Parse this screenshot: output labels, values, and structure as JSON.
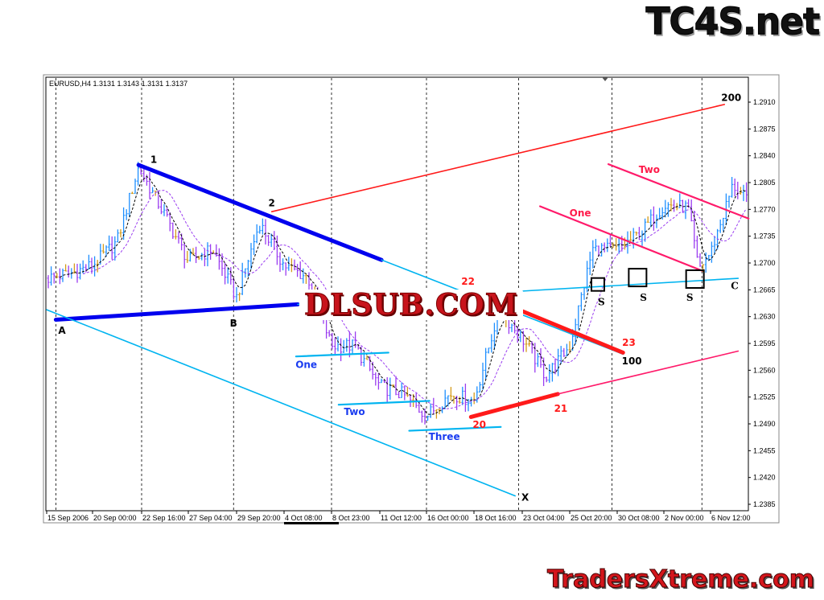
{
  "header": {
    "symbol_info": "EURUSD,H4  1.3131 1.3143 1.3131 1.3137"
  },
  "watermarks": {
    "top_right": "TC4S.net",
    "center": "DLSUB.COM",
    "bottom_right": "TradersXtreme.com"
  },
  "chart_data": {
    "type": "candlestick-bars",
    "symbol": "EURUSD",
    "timeframe": "H4",
    "ylim": [
      1.2385,
      1.293
    ],
    "y_ticks": [
      "1.2910",
      "1.2875",
      "1.2840",
      "1.2805",
      "1.2770",
      "1.2735",
      "1.2700",
      "1.2665",
      "1.2630",
      "1.2595",
      "1.2560",
      "1.2525",
      "1.2490",
      "1.2455",
      "1.2420",
      "1.2385"
    ],
    "x_ticks": [
      {
        "label": "15 Sep 2006",
        "t": "2006-09-15 00:00"
      },
      {
        "label": "20 Sep 00:00",
        "t": "2006-09-20 00:00"
      },
      {
        "label": "22 Sep 16:00",
        "t": "2006-09-22 16:00"
      },
      {
        "label": "27 Sep 04:00",
        "t": "2006-09-27 04:00"
      },
      {
        "label": "29 Sep 20:00",
        "t": "2006-09-29 20:00"
      },
      {
        "label": "4 Oct 08:00",
        "t": "2006-10-04 08:00"
      },
      {
        "label": "8 Oct 23:00",
        "t": "2006-10-08 23:00"
      },
      {
        "label": "11 Oct 12:00",
        "t": "2006-10-11 12:00"
      },
      {
        "label": "16 Oct 00:00",
        "t": "2006-10-16 00:00"
      },
      {
        "label": "18 Oct 16:00",
        "t": "2006-10-18 16:00"
      },
      {
        "label": "23 Oct 04:00",
        "t": "2006-10-23 04:00"
      },
      {
        "label": "25 Oct 20:00",
        "t": "2006-10-25 20:00"
      },
      {
        "label": "30 Oct 08:00",
        "t": "2006-10-30 08:00"
      },
      {
        "label": "2 Nov 00:00",
        "t": "2006-11-02 00:00"
      },
      {
        "label": "6 Nov 12:00",
        "t": "2006-11-06 12:00"
      }
    ],
    "period_separators": [
      "2006-09-16 00:00",
      "2006-09-22 16:00",
      "2006-09-29 16:00",
      "2006-10-08 23:00",
      "2006-10-16 00:00",
      "2006-10-22 20:00",
      "2006-10-29 20:00",
      "2006-11-05 16:00"
    ],
    "grid": false,
    "colors": {
      "bar_up": "#1e8fff",
      "bar_down": "#9a3cf0",
      "bar_doji": "#d49a1a",
      "ma_fast": "#000000",
      "ma_slow": "#9a3cf0",
      "blue_trend": "#0000ee",
      "cyan_line": "#00b4f0",
      "red_line": "#ff1a1a",
      "pink_line": "#ff1a6a"
    },
    "moving_averages": [
      {
        "period": 5,
        "color": "#000000",
        "style": "dashed"
      },
      {
        "period": 13,
        "color": "#9a3cf0",
        "style": "dashed"
      }
    ],
    "price_path": [
      [
        "2006-09-15 00:00",
        1.268
      ],
      [
        "2006-09-17 12:00",
        1.2686
      ],
      [
        "2006-09-20 00:00",
        1.2697
      ],
      [
        "2006-09-21 08:00",
        1.2728
      ],
      [
        "2006-09-22 12:00",
        1.2825
      ],
      [
        "2006-09-25 00:00",
        1.276
      ],
      [
        "2006-09-27 04:00",
        1.2702
      ],
      [
        "2006-09-28 12:00",
        1.2718
      ],
      [
        "2006-09-29 20:00",
        1.2655
      ],
      [
        "2006-10-02 00:00",
        1.2752
      ],
      [
        "2006-10-04 08:00",
        1.2697
      ],
      [
        "2006-10-06 16:00",
        1.2681
      ],
      [
        "2006-10-08 23:00",
        1.2592
      ],
      [
        "2006-10-10 04:00",
        1.2592
      ],
      [
        "2006-10-11 12:00",
        1.2539
      ],
      [
        "2006-10-13 16:00",
        1.2529
      ],
      [
        "2006-10-16 00:00",
        1.25
      ],
      [
        "2006-10-17 08:00",
        1.2529
      ],
      [
        "2006-10-18 16:00",
        1.252
      ],
      [
        "2006-10-21 00:00",
        1.2639
      ],
      [
        "2006-10-23 04:00",
        1.2602
      ],
      [
        "2006-10-24 12:00",
        1.2552
      ],
      [
        "2006-10-25 20:00",
        1.2592
      ],
      [
        "2006-10-28 00:00",
        1.2718
      ],
      [
        "2006-10-30 08:00",
        1.2718
      ],
      [
        "2006-10-31 16:00",
        1.2739
      ],
      [
        "2006-11-02 00:00",
        1.2776
      ],
      [
        "2006-11-04 08:00",
        1.2772
      ],
      [
        "2006-11-05 08:00",
        1.2692
      ],
      [
        "2006-11-06 12:00",
        1.2713
      ],
      [
        "2006-11-08 16:00",
        1.2802
      ],
      [
        "2006-11-10 00:00",
        1.2781
      ]
    ],
    "annotations": {
      "lines": [
        {
          "name": "trendline-1",
          "color": "#0000ee",
          "weight": "thick",
          "from": [
            "2006-09-22 12:00",
            1.2828
          ],
          "to": [
            "2006-10-11 16:00",
            1.2704
          ]
        },
        {
          "name": "trendline-1-extension",
          "color": "#00b4f0",
          "weight": "thin",
          "from": [
            "2006-10-11 16:00",
            1.2704
          ],
          "to": [
            "2006-10-30 16:00",
            1.2581
          ]
        },
        {
          "name": "trendline-a-b",
          "color": "#0000ee",
          "weight": "thick",
          "from": [
            "2006-09-16 00:00",
            1.2626
          ],
          "to": [
            "2006-10-05 16:00",
            1.2646
          ]
        },
        {
          "name": "trendline-a-b-extension-c",
          "color": "#00b4f0",
          "weight": "thin",
          "from": [
            "2006-10-05 16:00",
            1.2646
          ],
          "to": [
            "2006-11-09 04:00",
            1.268
          ]
        },
        {
          "name": "line-a-x",
          "color": "#00b4f0",
          "weight": "thin",
          "from": [
            "2006-09-15 00:00",
            1.2639
          ],
          "to": [
            "2006-10-22 12:00",
            1.2396
          ]
        },
        {
          "name": "line-2-200",
          "color": "#ff1a1a",
          "weight": "thin",
          "from": [
            "2006-10-03 04:00",
            1.2767
          ],
          "to": [
            "2006-11-07 20:00",
            1.2907
          ]
        },
        {
          "name": "line-22-23",
          "color": "#ff1a1a",
          "weight": "thick",
          "from": [
            "2006-10-22 20:00",
            1.2639
          ],
          "to": [
            "2006-10-30 16:00",
            1.2583
          ]
        },
        {
          "name": "line-20-21",
          "color": "#ff1a1a",
          "weight": "thick",
          "from": [
            "2006-10-18 12:00",
            1.2499
          ],
          "to": [
            "2006-10-25 04:00",
            1.2529
          ]
        },
        {
          "name": "line-21-extension",
          "color": "#ff1a6a",
          "weight": "thin",
          "from": [
            "2006-10-25 04:00",
            1.2529
          ],
          "to": [
            "2006-11-09 04:00",
            1.2585
          ]
        },
        {
          "name": "support-one",
          "color": "#00b4f0",
          "weight": "medium",
          "from": [
            "2006-10-05 12:00",
            1.2578
          ],
          "to": [
            "2006-10-12 08:00",
            1.2583
          ]
        },
        {
          "name": "support-two",
          "color": "#00b4f0",
          "weight": "medium",
          "from": [
            "2006-10-09 08:00",
            1.2515
          ],
          "to": [
            "2006-10-16 04:00",
            1.252
          ]
        },
        {
          "name": "support-three",
          "color": "#00b4f0",
          "weight": "medium",
          "from": [
            "2006-10-14 08:00",
            1.2481
          ],
          "to": [
            "2006-10-21 04:00",
            1.2486
          ]
        },
        {
          "name": "channel-one",
          "color": "#ff1a6a",
          "weight": "medium",
          "from": [
            "2006-10-24 04:00",
            1.2774
          ],
          "to": [
            "2006-11-05 16:00",
            1.269
          ]
        },
        {
          "name": "channel-two",
          "color": "#ff1a6a",
          "weight": "medium",
          "from": [
            "2006-10-29 12:00",
            1.2829
          ],
          "to": [
            "2006-11-10 04:00",
            1.2758
          ]
        }
      ],
      "boxes": [
        {
          "name": "s-box-1",
          "at": [
            "2006-10-28 12:00",
            1.2672
          ],
          "size": "small"
        },
        {
          "name": "s-box-2",
          "at": [
            "2006-10-31 12:00",
            1.2681
          ],
          "size": "large"
        },
        {
          "name": "s-box-3",
          "at": [
            "2006-11-05 00:00",
            1.2679
          ],
          "size": "large"
        }
      ],
      "labels": [
        {
          "text": "1",
          "at": [
            "2006-09-23 20:00",
            1.2835
          ],
          "color": "#000000",
          "font": "sans"
        },
        {
          "text": "2",
          "at": [
            "2006-10-03 04:00",
            1.2778
          ],
          "color": "#000000",
          "font": "sans"
        },
        {
          "text": "A",
          "at": [
            "2006-09-16 16:00",
            1.2612
          ],
          "color": "#000000",
          "font": "sans"
        },
        {
          "text": "B",
          "at": [
            "2006-09-29 16:00",
            1.2621
          ],
          "color": "#000000",
          "font": "sans"
        },
        {
          "text": "X",
          "at": [
            "2006-10-23 08:00",
            1.2394
          ],
          "color": "#000000",
          "font": "sans"
        },
        {
          "text": "100",
          "at": [
            "2006-10-31 04:00",
            1.2572
          ],
          "color": "#000000",
          "font": "sans"
        },
        {
          "text": "200",
          "at": [
            "2006-11-08 12:00",
            1.2916
          ],
          "color": "#000000",
          "font": "sans"
        },
        {
          "text": "22",
          "at": [
            "2006-10-18 08:00",
            1.2676
          ],
          "color": "#ff1a1a",
          "font": "sans"
        },
        {
          "text": "23",
          "at": [
            "2006-10-31 00:00",
            1.2596
          ],
          "color": "#ff1a1a",
          "font": "sans"
        },
        {
          "text": "20",
          "at": [
            "2006-10-19 04:00",
            1.2489
          ],
          "color": "#ff1a1a",
          "font": "sans"
        },
        {
          "text": "21",
          "at": [
            "2006-10-25 08:00",
            1.251
          ],
          "color": "#ff1a1a",
          "font": "sans"
        },
        {
          "text": "One",
          "at": [
            "2006-10-06 12:00",
            1.2567
          ],
          "color": "#1a3cf0",
          "font": "sans"
        },
        {
          "text": "Two",
          "at": [
            "2006-10-10 04:00",
            1.2506
          ],
          "color": "#1a3cf0",
          "font": "sans"
        },
        {
          "text": "Three",
          "at": [
            "2006-10-17 00:00",
            1.2473
          ],
          "color": "#1a3cf0",
          "font": "sans"
        },
        {
          "text": "One",
          "at": [
            "2006-10-26 20:00",
            1.2765
          ],
          "color": "#ff1a4a",
          "font": "sans"
        },
        {
          "text": "Two",
          "at": [
            "2006-11-01 04:00",
            1.2822
          ],
          "color": "#ff1a4a",
          "font": "sans"
        },
        {
          "text": "S",
          "at": [
            "2006-10-28 20:00",
            1.2649
          ],
          "color": "#000000",
          "font": "serif"
        },
        {
          "text": "S",
          "at": [
            "2006-10-31 20:00",
            1.2655
          ],
          "color": "#000000",
          "font": "serif"
        },
        {
          "text": "S",
          "at": [
            "2006-11-04 12:00",
            1.2655
          ],
          "color": "#000000",
          "font": "serif"
        },
        {
          "text": "C",
          "at": [
            "2006-11-08 20:00",
            1.267
          ],
          "color": "#000000",
          "font": "serif"
        }
      ]
    }
  }
}
